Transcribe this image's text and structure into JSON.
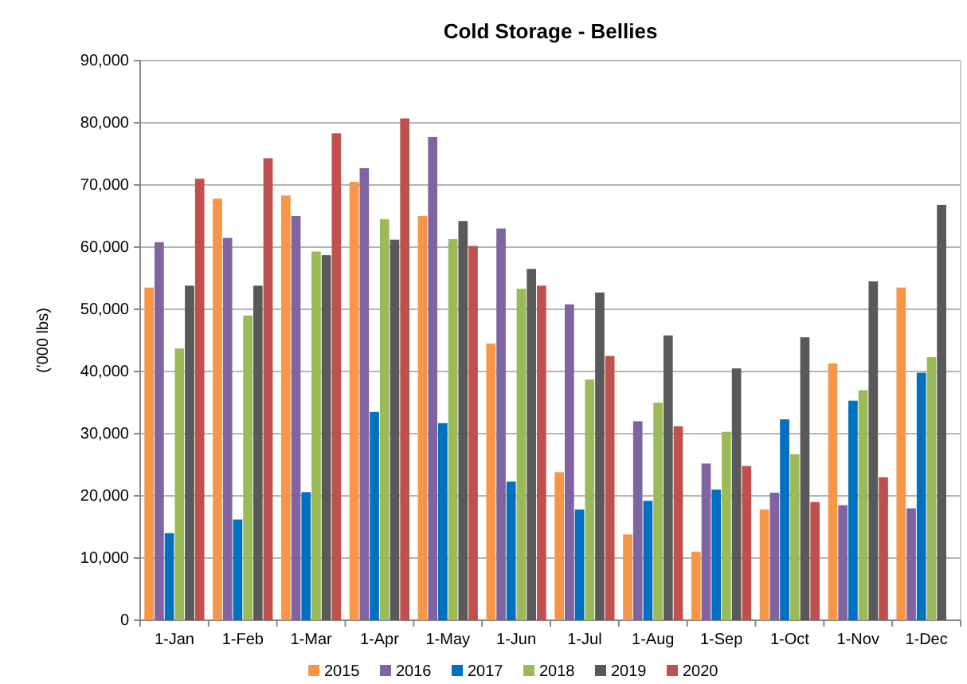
{
  "chart_data": {
    "type": "bar",
    "title": "Cold Storage - Bellies",
    "ylabel": "('000 lbs)",
    "categories": [
      "1-Jan",
      "1-Feb",
      "1-Mar",
      "1-Apr",
      "1-May",
      "1-Jun",
      "1-Jul",
      "1-Aug",
      "1-Sep",
      "1-Oct",
      "1-Nov",
      "1-Dec"
    ],
    "series": [
      {
        "name": "2015",
        "color": "#f79646",
        "values": [
          53500,
          67800,
          68300,
          70500,
          65000,
          44500,
          23800,
          13800,
          11000,
          17800,
          41300,
          53500
        ]
      },
      {
        "name": "2016",
        "color": "#8064a2",
        "values": [
          60800,
          61500,
          65000,
          72700,
          77700,
          63000,
          50800,
          32000,
          25200,
          20500,
          18500,
          18000
        ]
      },
      {
        "name": "2017",
        "color": "#0070c0",
        "values": [
          14000,
          16200,
          20600,
          33500,
          31700,
          22300,
          17800,
          19200,
          21000,
          32300,
          35300,
          39800
        ]
      },
      {
        "name": "2018",
        "color": "#9bbb59",
        "values": [
          43700,
          49000,
          59300,
          64500,
          61300,
          53300,
          38700,
          35000,
          30300,
          26700,
          37000,
          42300
        ]
      },
      {
        "name": "2019",
        "color": "#595959",
        "values": [
          53800,
          53800,
          58700,
          61200,
          64200,
          56500,
          52700,
          45800,
          40500,
          45500,
          54500,
          66800
        ]
      },
      {
        "name": "2020",
        "color": "#c0504d",
        "values": [
          71000,
          74300,
          78300,
          80700,
          60200,
          53800,
          42500,
          31200,
          24800,
          19000,
          23000,
          null
        ]
      }
    ],
    "ylim": [
      0,
      90000
    ],
    "yticks": [
      {
        "value": 0,
        "label": "0"
      },
      {
        "value": 10000,
        "label": "10,000"
      },
      {
        "value": 20000,
        "label": "20,000"
      },
      {
        "value": 30000,
        "label": "30,000"
      },
      {
        "value": 40000,
        "label": "40,000"
      },
      {
        "value": 50000,
        "label": "50,000"
      },
      {
        "value": 60000,
        "label": "60,000"
      },
      {
        "value": 70000,
        "label": "70,000"
      },
      {
        "value": 80000,
        "label": "80,000"
      },
      {
        "value": 90000,
        "label": "90,000"
      }
    ],
    "grid": "y",
    "legend": "bottom"
  }
}
